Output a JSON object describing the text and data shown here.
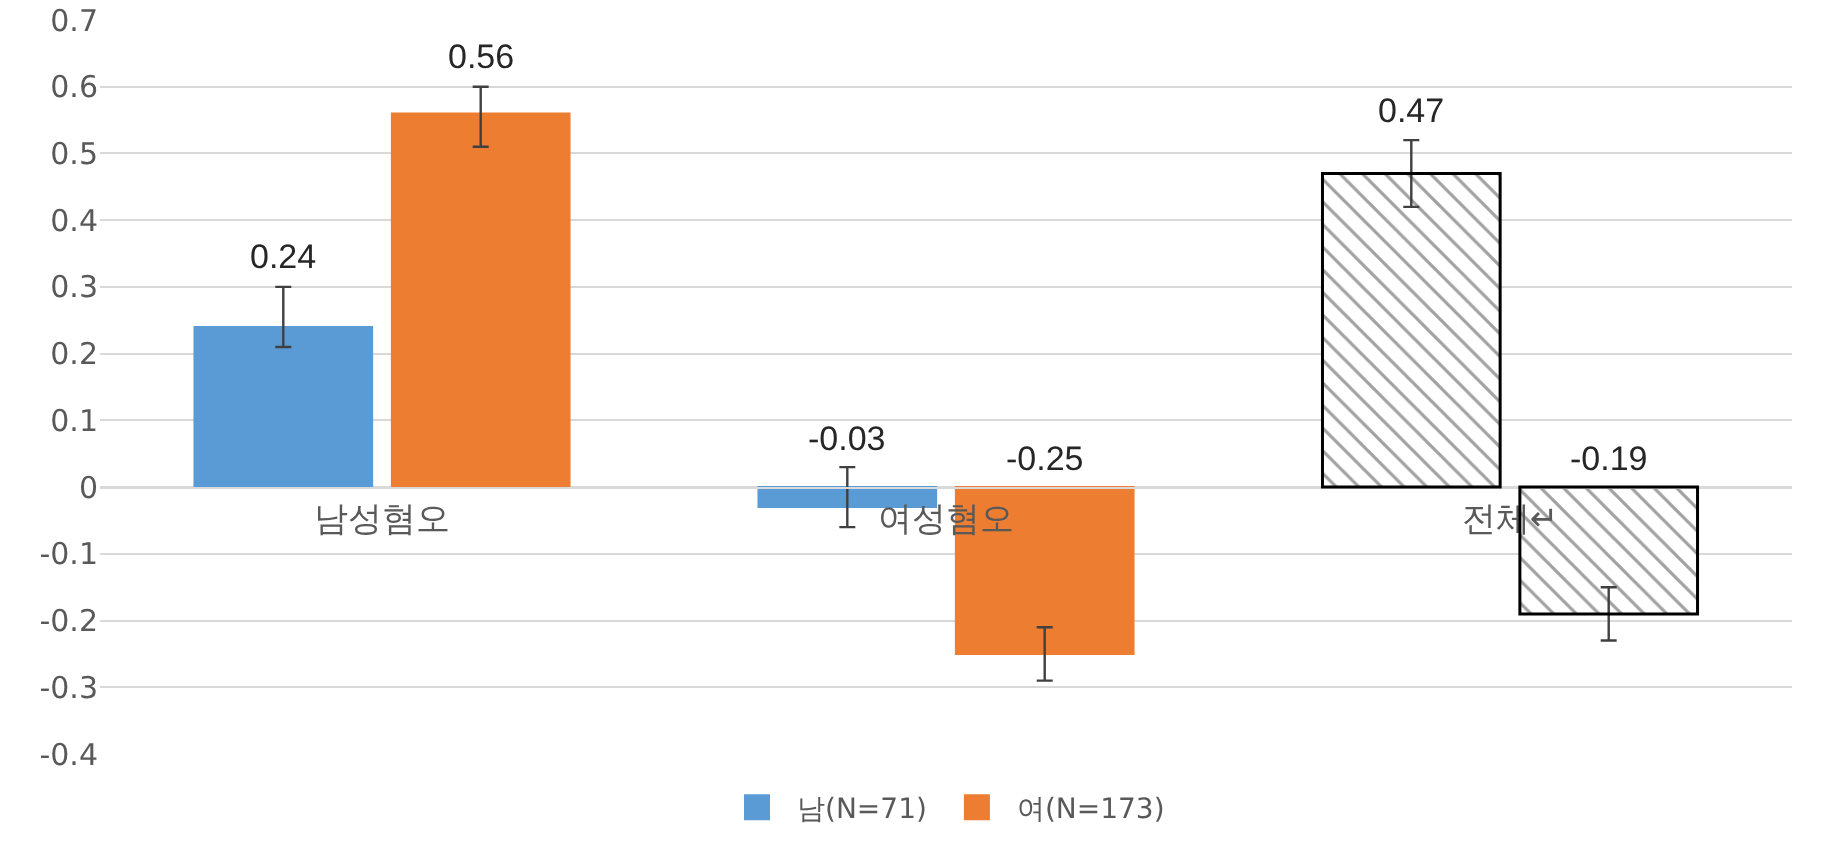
{
  "chart_data": {
    "type": "bar",
    "categories": [
      "남성혐오",
      "여성혐오",
      "전체↵"
    ],
    "series": [
      {
        "name": "남(N=71)",
        "color": "#5b9bd5",
        "colors": [
          "#5b9bd5",
          "#5b9bd5",
          "#ffffff"
        ],
        "values": [
          0.24,
          -0.03,
          0.47
        ],
        "errors": [
          [
            0.21,
            0.3
          ],
          [
            -0.06,
            0.03
          ],
          [
            0.42,
            0.52
          ]
        ]
      },
      {
        "name": "여(N=173)",
        "color": "#ed7d31",
        "colors": [
          "#ed7d31",
          "#ed7d31",
          "#ffffff"
        ],
        "values": [
          0.56,
          -0.25,
          -0.19
        ],
        "errors": [
          [
            0.51,
            0.6
          ],
          [
            -0.29,
            -0.21
          ],
          [
            -0.23,
            -0.15
          ]
        ]
      }
    ],
    "ylim": [
      -0.4,
      0.7
    ],
    "yticks": [
      -0.4,
      -0.3,
      -0.2,
      -0.1,
      0,
      0.1,
      0.2,
      0.3,
      0.4,
      0.5,
      0.6,
      0.7
    ],
    "grid": "y",
    "legend": "bottom",
    "data_labels": true
  }
}
